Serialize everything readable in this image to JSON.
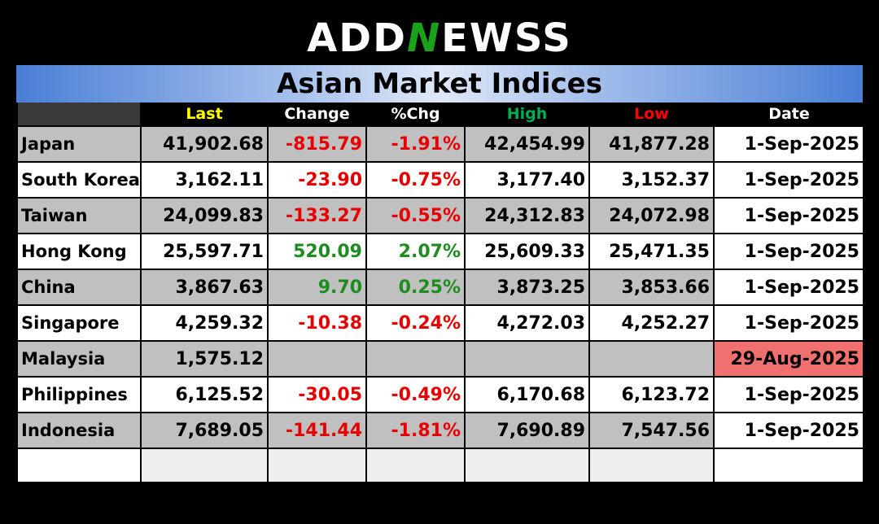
{
  "logo": {
    "part1": "ADD",
    "part2": "N",
    "part3": "EWSS"
  },
  "title": "Asian Market Indices",
  "colors": {
    "header_last": "#ffff00",
    "header_high": "#00b050",
    "header_low": "#ff0000",
    "negative": "#e60000",
    "positive": "#1e8c1e",
    "stale_date_bg": "#f07070"
  },
  "headers": {
    "last": "Last",
    "change": "Change",
    "pct": "%Chg",
    "high": "High",
    "low": "Low",
    "date": "Date"
  },
  "rows": [
    {
      "name": "Japan",
      "last": "41,902.68",
      "change": "-815.79",
      "pct": "-1.91%",
      "high": "42,454.99",
      "low": "41,877.28",
      "date": "1-Sep-2025",
      "trend": "negative",
      "stale": false
    },
    {
      "name": "South Korea",
      "last": "3,162.11",
      "change": "-23.90",
      "pct": "-0.75%",
      "high": "3,177.40",
      "low": "3,152.37",
      "date": "1-Sep-2025",
      "trend": "negative",
      "stale": false
    },
    {
      "name": "Taiwan",
      "last": "24,099.83",
      "change": "-133.27",
      "pct": "-0.55%",
      "high": "24,312.83",
      "low": "24,072.98",
      "date": "1-Sep-2025",
      "trend": "negative",
      "stale": false
    },
    {
      "name": "Hong Kong",
      "last": "25,597.71",
      "change": "520.09",
      "pct": "2.07%",
      "high": "25,609.33",
      "low": "25,471.35",
      "date": "1-Sep-2025",
      "trend": "positive",
      "stale": false
    },
    {
      "name": "China",
      "last": "3,867.63",
      "change": "9.70",
      "pct": "0.25%",
      "high": "3,873.25",
      "low": "3,853.66",
      "date": "1-Sep-2025",
      "trend": "positive",
      "stale": false
    },
    {
      "name": "Singapore",
      "last": "4,259.32",
      "change": "-10.38",
      "pct": "-0.24%",
      "high": "4,272.03",
      "low": "4,252.27",
      "date": "1-Sep-2025",
      "trend": "negative",
      "stale": false
    },
    {
      "name": "Malaysia",
      "last": "1,575.12",
      "change": "",
      "pct": "",
      "high": "",
      "low": "",
      "date": "29-Aug-2025",
      "trend": "none",
      "stale": true
    },
    {
      "name": "Philippines",
      "last": "6,125.52",
      "change": "-30.05",
      "pct": "-0.49%",
      "high": "6,170.68",
      "low": "6,123.72",
      "date": "1-Sep-2025",
      "trend": "negative",
      "stale": false
    },
    {
      "name": "Indonesia",
      "last": "7,689.05",
      "change": "-141.44",
      "pct": "-1.81%",
      "high": "7,690.89",
      "low": "7,547.56",
      "date": "1-Sep-2025",
      "trend": "negative",
      "stale": false
    }
  ]
}
